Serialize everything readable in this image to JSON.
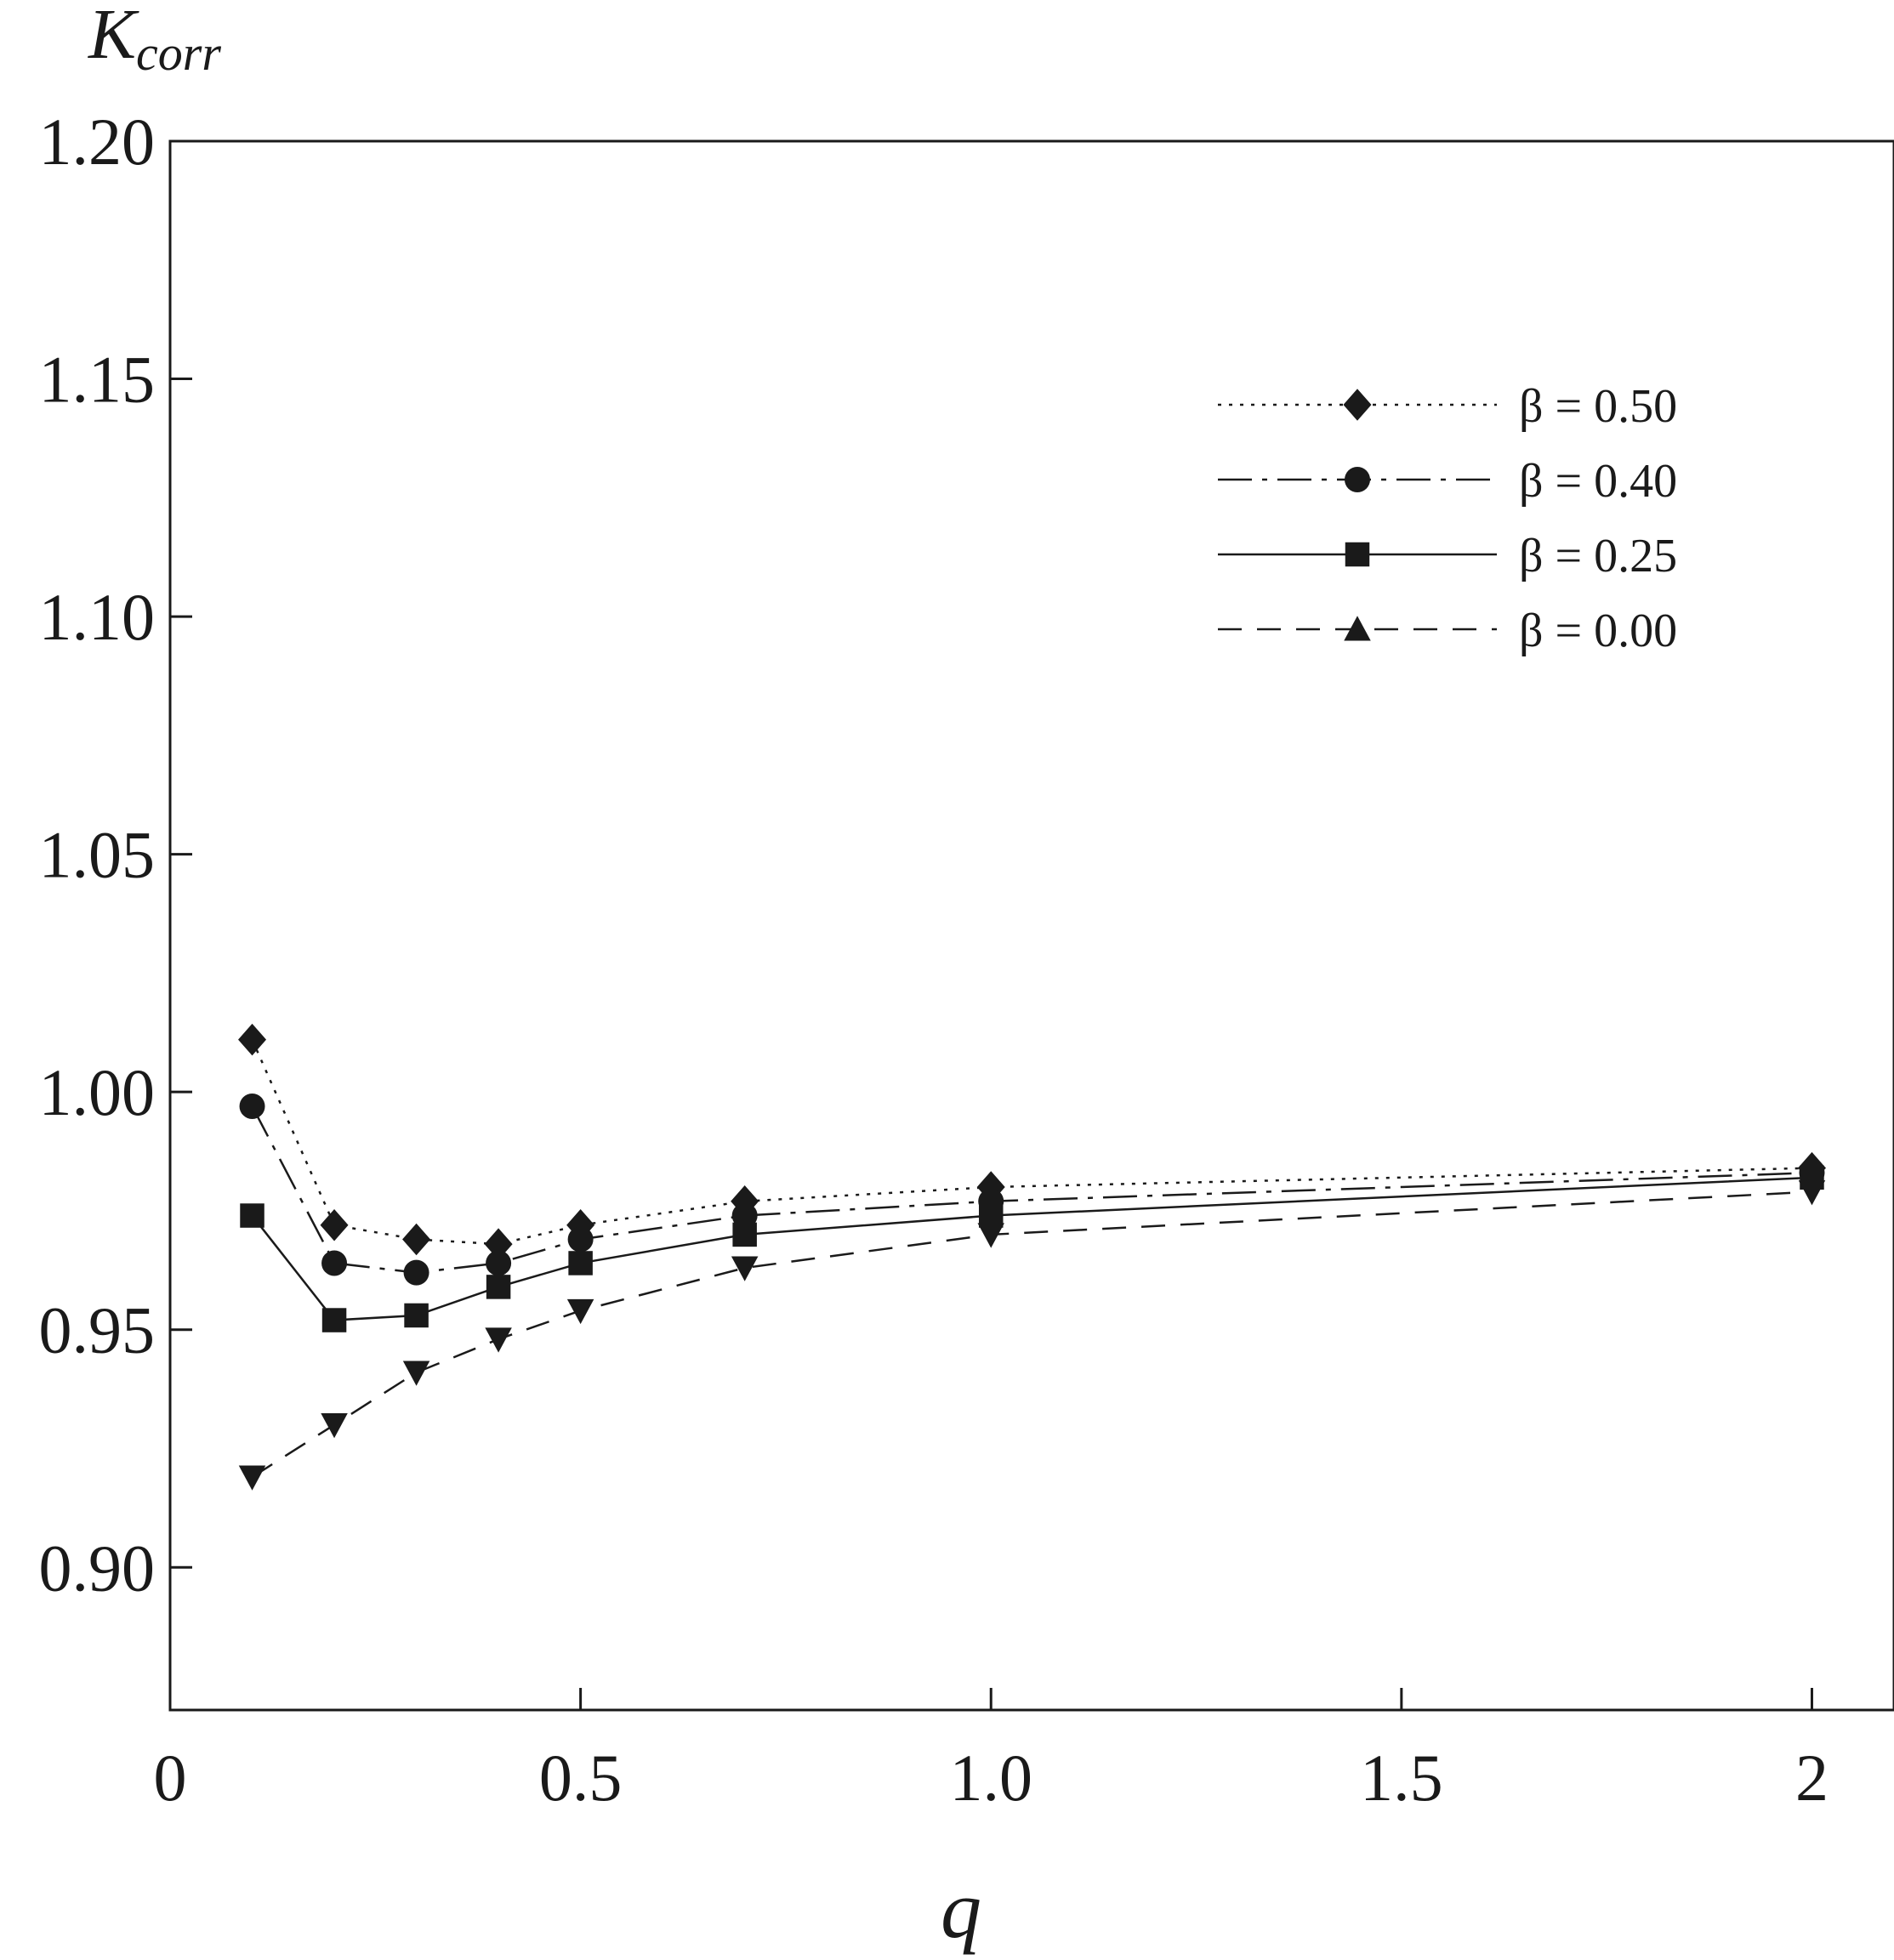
{
  "chart_data": {
    "type": "line",
    "ylabel": "K",
    "ylabel_sub": "corr",
    "xlabel": "q",
    "xlim": [
      0,
      2.1
    ],
    "ylim": [
      0.87,
      1.2
    ],
    "x_ticks": [
      0,
      0.5,
      1.0,
      1.5,
      2
    ],
    "x_tick_labels": [
      "0",
      "0.5",
      "1.0",
      "1.5",
      "2"
    ],
    "y_ticks": [
      0.9,
      0.95,
      1.0,
      1.05,
      1.1,
      1.15,
      1.2
    ],
    "y_tick_labels": [
      "0.90",
      "0.95",
      "1.00",
      "1.05",
      "1.10",
      "1.15",
      "1.20"
    ],
    "grid": false,
    "legend_position": "top-right",
    "series": [
      {
        "name": "β = 0.50",
        "marker": "diamond",
        "line": "dotted",
        "x": [
          0.1,
          0.2,
          0.3,
          0.4,
          0.5,
          0.7,
          1.0,
          2.0
        ],
        "y": [
          1.011,
          0.972,
          0.969,
          0.968,
          0.972,
          0.977,
          0.98,
          0.984
        ]
      },
      {
        "name": "β = 0.40",
        "marker": "circle",
        "line": "dash-dot",
        "x": [
          0.1,
          0.2,
          0.3,
          0.4,
          0.5,
          0.7,
          1.0,
          2.0
        ],
        "y": [
          0.997,
          0.964,
          0.962,
          0.964,
          0.969,
          0.974,
          0.977,
          0.983
        ]
      },
      {
        "name": "β = 0.25",
        "marker": "square",
        "line": "solid",
        "x": [
          0.1,
          0.2,
          0.3,
          0.4,
          0.5,
          0.7,
          1.0,
          2.0
        ],
        "y": [
          0.974,
          0.952,
          0.953,
          0.959,
          0.964,
          0.97,
          0.974,
          0.982
        ]
      },
      {
        "name": "β = 0.00",
        "marker": "triangle",
        "plot_marker": "triangle-down",
        "line": "dashed",
        "x": [
          0.1,
          0.2,
          0.3,
          0.4,
          0.5,
          0.7,
          1.0,
          2.0
        ],
        "y": [
          0.919,
          0.93,
          0.941,
          0.948,
          0.954,
          0.963,
          0.97,
          0.979
        ]
      }
    ]
  }
}
